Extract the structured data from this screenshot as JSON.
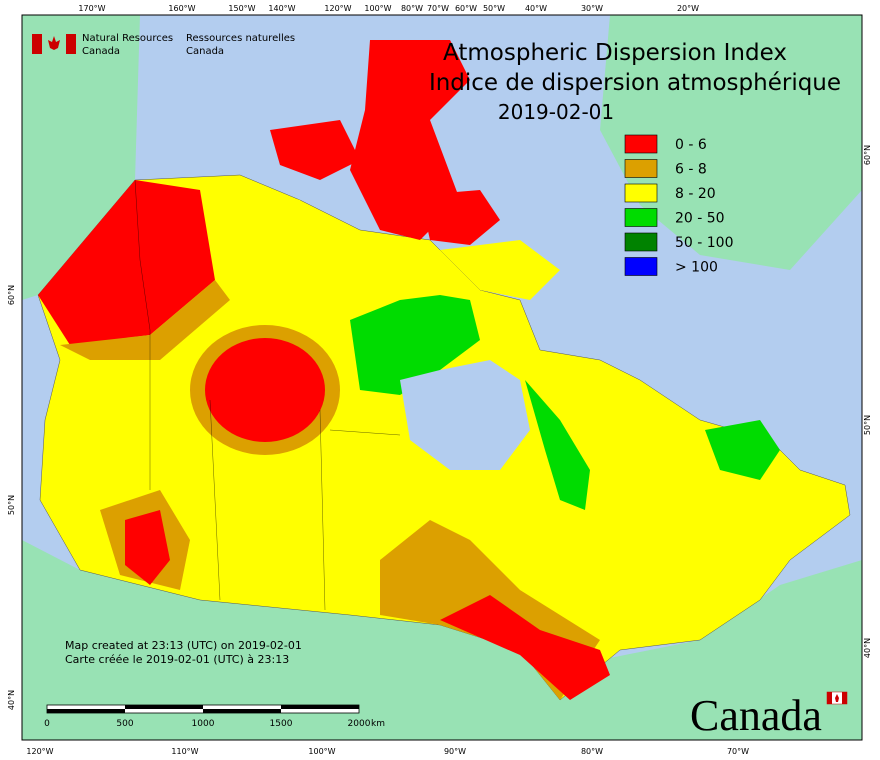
{
  "header": {
    "agency_en": "Natural Resources",
    "agency_en2": "Canada",
    "agency_fr": "Ressources naturelles",
    "agency_fr2": "Canada"
  },
  "map": {
    "title_en": "Atmospheric Dispersion Index",
    "title_fr": "Indice de dispersion atmosphérique",
    "date": "2019-02-01",
    "legend": [
      {
        "label": "0 - 6",
        "color": "#ff0000"
      },
      {
        "label": "6 - 8",
        "color": "#dca000"
      },
      {
        "label": "8 - 20",
        "color": "#ffff00"
      },
      {
        "label": "20 - 50",
        "color": "#00dc00"
      },
      {
        "label": "50 - 100",
        "color": "#008200"
      },
      {
        "label": "> 100",
        "color": "#0000ff"
      }
    ],
    "credits": [
      "Map created at 23:13 (UTC) on 2019-02-01",
      "Carte créée le 2019-02-01 (UTC) à 23:13"
    ],
    "scale_bar": {
      "ticks": [
        0,
        500,
        1000,
        1500,
        2000
      ],
      "unit": "km"
    },
    "graticule": {
      "top": [
        "170°W",
        "160°W",
        "150°W",
        "140°W",
        "120°W",
        "100°W",
        "80°W",
        "70°W",
        "60°W",
        "50°W",
        "40°W",
        "30°W",
        "20°W"
      ],
      "bottom": [
        "120°W",
        "110°W",
        "100°W",
        "90°W",
        "80°W",
        "70°W"
      ],
      "left": [
        "60°N",
        "50°N",
        "40°N"
      ],
      "right": [
        "60°N",
        "50°N",
        "40°N"
      ]
    },
    "wordmark": "Canada"
  }
}
